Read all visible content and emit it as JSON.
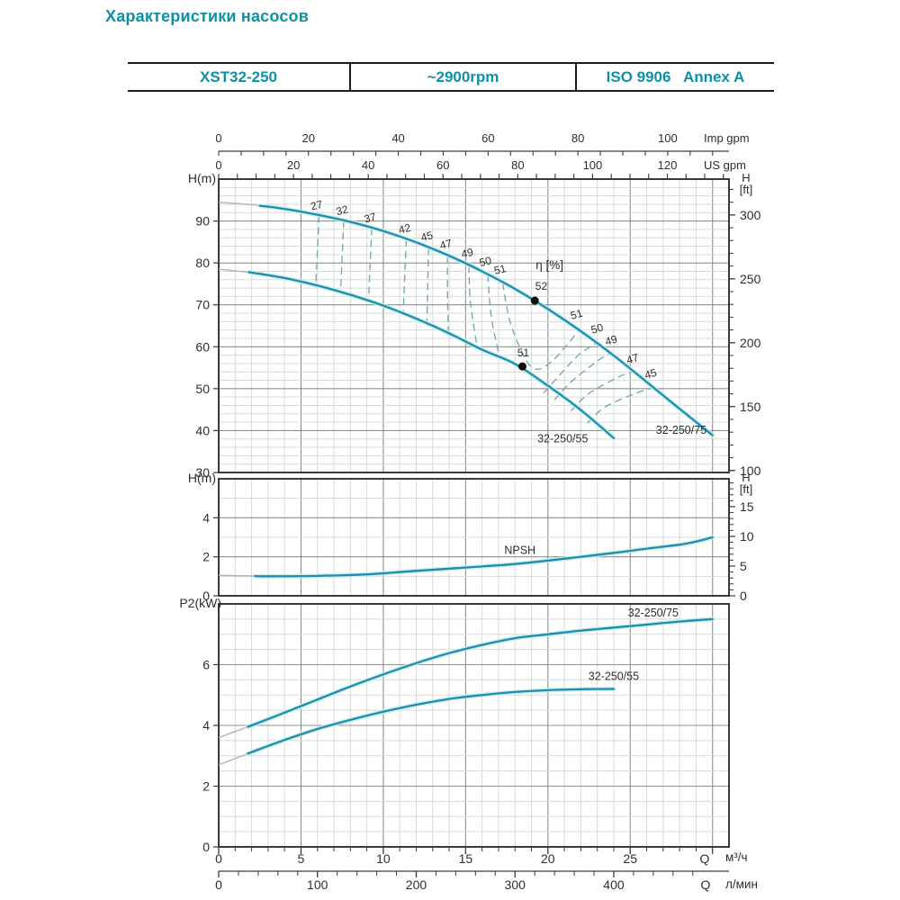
{
  "page": {
    "title": "Характеристики насосов"
  },
  "header": {
    "model": "XST32-250",
    "speed": "~2900rpm",
    "standard": "ISO 9906   Annex A"
  },
  "colors": {
    "teal_text": "#0f91a5",
    "curve": "#1d8fab",
    "curve_halo": "#c9ecf2",
    "curve_lead": "#a8b6b6",
    "eff_dash": "#6fa6aa",
    "grid_minor": "#d7dada",
    "grid_major": "#8c9192",
    "frame": "#3a3a3a",
    "text": "#2e2e2e",
    "dot": "#111111"
  },
  "chart_data": {
    "type": "line",
    "x": {
      "label": "Q",
      "range": [
        0,
        31
      ],
      "major_step": 5,
      "minor_step": 1,
      "bottom_labels": [
        0,
        5,
        10,
        15,
        20,
        25
      ],
      "unit_m3h": "м³/ч",
      "unit_lmin": "л/мин",
      "lmin_labels": [
        0,
        100,
        200,
        300,
        400
      ],
      "lmin_minor_step": 20,
      "m3h_per_lmin": 0.06,
      "imp": {
        "unit": "Imp gpm",
        "labels": [
          0,
          20,
          40,
          60,
          80,
          100
        ],
        "minor_step": 5,
        "minor_max": 110,
        "m3h_per_unit": 0.272766
      },
      "us": {
        "unit": "US gpm",
        "labels": [
          0,
          20,
          40,
          60,
          80,
          100,
          120
        ],
        "minor_step": 5,
        "minor_max": 135,
        "m3h_per_unit": 0.227125
      },
      "ft_per_m": 3.2808
    },
    "panels": [
      {
        "id": "hq",
        "y_label": "H(m)",
        "y_range": [
          30,
          100
        ],
        "y_major": 10,
        "y_minor": 2,
        "y_labels": [
          30,
          40,
          50,
          60,
          70,
          80,
          90
        ],
        "right": {
          "label1": "H",
          "label2": "[ft]",
          "labels": [
            100,
            150,
            200,
            250,
            300
          ],
          "minor_step": 10,
          "minor_range": [
            100,
            320
          ]
        },
        "series": [
          {
            "name": "32-250/75",
            "solid_from": 2.5,
            "label_at": [
              28.1,
              39.2
            ],
            "points": [
              [
                0,
                94.5
              ],
              [
                2,
                93.9
              ],
              [
                4,
                92.9
              ],
              [
                6,
                91.5
              ],
              [
                8,
                89.8
              ],
              [
                10,
                87.6
              ],
              [
                12,
                84.9
              ],
              [
                14,
                81.7
              ],
              [
                16,
                78.0
              ],
              [
                18,
                73.8
              ],
              [
                20,
                69.0
              ],
              [
                22,
                63.7
              ],
              [
                24,
                57.9
              ],
              [
                26,
                51.6
              ],
              [
                28,
                45.2
              ],
              [
                30,
                38.9
              ]
            ]
          },
          {
            "name": "32-250/55",
            "solid_from": 1.9,
            "label_at": [
              20.9,
              37.2
            ],
            "points": [
              [
                0,
                78.5
              ],
              [
                2,
                77.7
              ],
              [
                4,
                76.4
              ],
              [
                6,
                74.6
              ],
              [
                8,
                72.4
              ],
              [
                10,
                69.8
              ],
              [
                12,
                66.7
              ],
              [
                14,
                63.2
              ],
              [
                16,
                59.3
              ],
              [
                18,
                55.9
              ],
              [
                20,
                50.7
              ],
              [
                22,
                44.9
              ],
              [
                24,
                38.2
              ]
            ]
          }
        ],
        "bep_dots": [
          {
            "value": "52",
            "at": [
              19.2,
              71.0
            ]
          },
          {
            "value": "51",
            "at": [
              18.45,
              55.3
            ]
          }
        ],
        "eta_label": {
          "text": "η [%]",
          "at": [
            20.1,
            78.5
          ]
        },
        "eff_lines": [
          {
            "pts": [
              [
                6.1,
                91.3
              ],
              [
                6.0,
                83.0
              ],
              [
                5.9,
                74.7
              ]
            ]
          },
          {
            "pts": [
              [
                7.6,
                90.1
              ],
              [
                7.5,
                81.5
              ],
              [
                7.4,
                73.2
              ]
            ]
          },
          {
            "pts": [
              [
                9.3,
                88.3
              ],
              [
                9.2,
                79.8
              ],
              [
                9.1,
                70.9
              ]
            ]
          },
          {
            "pts": [
              [
                11.4,
                85.6
              ],
              [
                11.3,
                76.8
              ],
              [
                11.2,
                67.9
              ]
            ]
          },
          {
            "pts": [
              [
                12.75,
                83.6
              ],
              [
                12.7,
                74.8
              ],
              [
                12.65,
                65.5
              ]
            ]
          },
          {
            "pts": [
              [
                13.9,
                81.6
              ],
              [
                13.9,
                72.8
              ],
              [
                13.95,
                63.3
              ]
            ]
          },
          {
            "pts": [
              [
                15.2,
                79.4
              ],
              [
                15.3,
                70.5
              ],
              [
                15.7,
                59.9
              ]
            ]
          },
          {
            "pts": [
              [
                16.35,
                77.2
              ],
              [
                16.55,
                67.5
              ],
              [
                17.05,
                57.6
              ]
            ]
          },
          {
            "pts": [
              [
                17.25,
                75.2
              ],
              [
                17.7,
                66.0
              ],
              [
                18.6,
                57.3
              ],
              [
                19.3,
                54.6
              ],
              [
                20.2,
                56.4
              ],
              [
                21.1,
                60.2
              ],
              [
                21.85,
                63.8
              ]
            ]
          },
          {
            "pts": [
              [
                19.75,
                49.0
              ],
              [
                20.7,
                53.2
              ],
              [
                21.9,
                58.2
              ],
              [
                22.9,
                60.7
              ]
            ]
          },
          {
            "pts": [
              [
                20.4,
                47.3
              ],
              [
                21.4,
                51.6
              ],
              [
                23.0,
                56.6
              ],
              [
                23.8,
                58.5
              ]
            ]
          },
          {
            "pts": [
              [
                21.4,
                44.7
              ],
              [
                22.5,
                48.9
              ],
              [
                24.3,
                52.8
              ],
              [
                25.15,
                54.1
              ]
            ]
          },
          {
            "pts": [
              [
                22.4,
                41.8
              ],
              [
                23.5,
                45.7
              ],
              [
                25.4,
                49.0
              ],
              [
                26.4,
                50.2
              ]
            ]
          }
        ],
        "eff_labels": [
          {
            "text": "27",
            "at": [
              6.0,
              92.9
            ],
            "rot": -14
          },
          {
            "text": "32",
            "at": [
              7.55,
              91.7
            ],
            "rot": -14
          },
          {
            "text": "37",
            "at": [
              9.25,
              89.9
            ],
            "rot": -14
          },
          {
            "text": "42",
            "at": [
              11.35,
              87.3
            ],
            "rot": -14
          },
          {
            "text": "45",
            "at": [
              12.7,
              85.5
            ],
            "rot": -14
          },
          {
            "text": "47",
            "at": [
              13.85,
              83.6
            ],
            "rot": -14
          },
          {
            "text": "49",
            "at": [
              15.15,
              81.5
            ],
            "rot": -14
          },
          {
            "text": "50",
            "at": [
              16.25,
              79.5
            ],
            "rot": -14
          },
          {
            "text": "51",
            "at": [
              17.15,
              77.6
            ],
            "rot": -14
          },
          {
            "text": "52",
            "at": [
              19.6,
              73.6
            ],
            "rot": 0
          },
          {
            "text": "51",
            "at": [
              18.5,
              57.7
            ],
            "rot": 0
          },
          {
            "text": "51",
            "at": [
              21.8,
              66.9
            ],
            "rot": -16
          },
          {
            "text": "50",
            "at": [
              23.05,
              63.5
            ],
            "rot": -16
          },
          {
            "text": "49",
            "at": [
              23.9,
              60.7
            ],
            "rot": -16
          },
          {
            "text": "47",
            "at": [
              25.2,
              56.3
            ],
            "rot": -16
          },
          {
            "text": "45",
            "at": [
              26.3,
              52.7
            ],
            "rot": -16
          }
        ]
      },
      {
        "id": "npsh",
        "y_label": "H(m)",
        "y_range": [
          0,
          6
        ],
        "y_major": 2,
        "y_minor": 1,
        "y_labels": [
          0,
          2,
          4
        ],
        "right": {
          "label1": "H",
          "label2": "[ft]",
          "labels": [
            0,
            5,
            10,
            15
          ],
          "minor_step": 1,
          "minor_range": [
            0,
            19
          ]
        },
        "series": [
          {
            "name": "NPSH",
            "solid_from": 2.2,
            "label_at": [
              18.3,
              2.15
            ],
            "points": [
              [
                0,
                1.05
              ],
              [
                3,
                1.0
              ],
              [
                6,
                1.02
              ],
              [
                9,
                1.1
              ],
              [
                12,
                1.28
              ],
              [
                15,
                1.45
              ],
              [
                18,
                1.63
              ],
              [
                21,
                1.9
              ],
              [
                24,
                2.2
              ],
              [
                26,
                2.42
              ],
              [
                28,
                2.62
              ],
              [
                29,
                2.78
              ],
              [
                30,
                3.0
              ]
            ]
          }
        ],
        "bep_dots": [],
        "eff_lines": [],
        "eff_labels": []
      },
      {
        "id": "p2",
        "y_label": "P2(kW)",
        "y_range": [
          0,
          8
        ],
        "y_major": 2,
        "y_minor": 0.5,
        "y_labels": [
          0,
          2,
          4,
          6
        ],
        "right": null,
        "series": [
          {
            "name": "32-250/75",
            "solid_from": 1.8,
            "label_at": [
              26.4,
              7.58
            ],
            "points": [
              [
                0,
                3.6
              ],
              [
                2,
                4.0
              ],
              [
                4,
                4.42
              ],
              [
                6,
                4.85
              ],
              [
                8,
                5.28
              ],
              [
                10,
                5.68
              ],
              [
                12,
                6.05
              ],
              [
                14,
                6.38
              ],
              [
                16,
                6.65
              ],
              [
                18,
                6.87
              ],
              [
                20,
                7.0
              ],
              [
                22,
                7.12
              ],
              [
                24,
                7.22
              ],
              [
                26,
                7.32
              ],
              [
                28,
                7.42
              ],
              [
                30,
                7.5
              ]
            ]
          },
          {
            "name": "32-250/55",
            "solid_from": 1.8,
            "label_at": [
              24.0,
              5.5
            ],
            "points": [
              [
                0,
                2.7
              ],
              [
                2,
                3.12
              ],
              [
                4,
                3.52
              ],
              [
                6,
                3.88
              ],
              [
                8,
                4.18
              ],
              [
                10,
                4.45
              ],
              [
                12,
                4.68
              ],
              [
                14,
                4.87
              ],
              [
                16,
                5.0
              ],
              [
                18,
                5.1
              ],
              [
                20,
                5.16
              ],
              [
                22,
                5.19
              ],
              [
                24,
                5.2
              ]
            ]
          }
        ],
        "bep_dots": [],
        "eff_lines": [],
        "eff_labels": []
      }
    ]
  }
}
